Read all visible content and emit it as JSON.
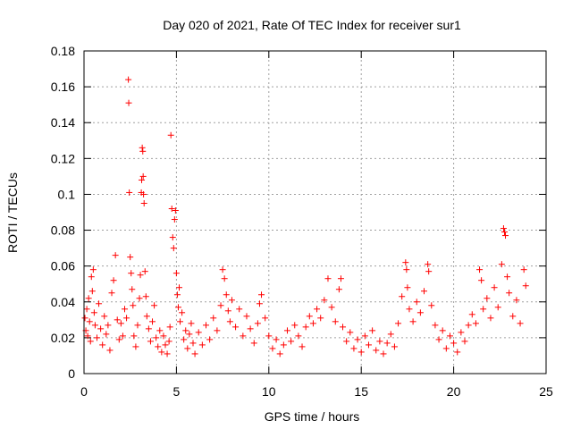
{
  "chart_data": {
    "type": "scatter",
    "title": "Day 020 of 2021, Rate Of TEC Index for receiver sur1",
    "xlabel": "GPS time / hours",
    "ylabel": "ROTI / TECUs",
    "xlim": [
      0,
      25
    ],
    "ylim": [
      0,
      0.18
    ],
    "x_ticks": [
      0,
      5,
      10,
      15,
      20,
      25
    ],
    "x_tick_labels": [
      "0",
      "5",
      "10",
      "15",
      "20",
      "25"
    ],
    "y_ticks": [
      0,
      0.02,
      0.04,
      0.06,
      0.08,
      0.1,
      0.12,
      0.14,
      0.16,
      0.18
    ],
    "y_tick_labels": [
      "0",
      "0.02",
      "0.04",
      "0.06",
      "0.08",
      "0.1",
      "0.12",
      "0.14",
      "0.16",
      "0.18"
    ],
    "grid": true,
    "marker": "+",
    "marker_color": "#ff0000",
    "series": [
      {
        "name": "sur1",
        "points": [
          [
            0.05,
            0.031
          ],
          [
            0.1,
            0.024
          ],
          [
            0.15,
            0.036
          ],
          [
            0.2,
            0.021
          ],
          [
            0.25,
            0.042
          ],
          [
            0.3,
            0.029
          ],
          [
            0.35,
            0.018
          ],
          [
            0.4,
            0.054
          ],
          [
            0.45,
            0.046
          ],
          [
            0.5,
            0.058
          ],
          [
            0.55,
            0.034
          ],
          [
            0.6,
            0.027
          ],
          [
            0.7,
            0.02
          ],
          [
            0.8,
            0.039
          ],
          [
            0.9,
            0.025
          ],
          [
            1.0,
            0.016
          ],
          [
            1.1,
            0.032
          ],
          [
            1.2,
            0.022
          ],
          [
            1.3,
            0.027
          ],
          [
            1.4,
            0.013
          ],
          [
            1.5,
            0.045
          ],
          [
            1.6,
            0.052
          ],
          [
            1.7,
            0.066
          ],
          [
            1.8,
            0.03
          ],
          [
            1.9,
            0.019
          ],
          [
            2.0,
            0.028
          ],
          [
            2.1,
            0.021
          ],
          [
            2.2,
            0.036
          ],
          [
            2.3,
            0.031
          ],
          [
            2.4,
            0.164
          ],
          [
            2.42,
            0.151
          ],
          [
            2.45,
            0.101
          ],
          [
            2.5,
            0.065
          ],
          [
            2.55,
            0.056
          ],
          [
            2.6,
            0.047
          ],
          [
            2.65,
            0.038
          ],
          [
            2.7,
            0.021
          ],
          [
            2.8,
            0.015
          ],
          [
            2.9,
            0.027
          ],
          [
            3.0,
            0.042
          ],
          [
            3.05,
            0.055
          ],
          [
            3.1,
            0.101
          ],
          [
            3.12,
            0.108
          ],
          [
            3.15,
            0.126
          ],
          [
            3.18,
            0.124
          ],
          [
            3.2,
            0.11
          ],
          [
            3.22,
            0.1
          ],
          [
            3.25,
            0.095
          ],
          [
            3.3,
            0.057
          ],
          [
            3.35,
            0.043
          ],
          [
            3.4,
            0.032
          ],
          [
            3.5,
            0.025
          ],
          [
            3.6,
            0.018
          ],
          [
            3.7,
            0.029
          ],
          [
            3.8,
            0.038
          ],
          [
            3.9,
            0.02
          ],
          [
            4.0,
            0.015
          ],
          [
            4.1,
            0.024
          ],
          [
            4.2,
            0.012
          ],
          [
            4.3,
            0.021
          ],
          [
            4.4,
            0.016
          ],
          [
            4.5,
            0.011
          ],
          [
            4.6,
            0.018
          ],
          [
            4.65,
            0.026
          ],
          [
            4.7,
            0.133
          ],
          [
            4.75,
            0.092
          ],
          [
            4.8,
            0.076
          ],
          [
            4.85,
            0.07
          ],
          [
            4.9,
            0.086
          ],
          [
            4.95,
            0.091
          ],
          [
            5.0,
            0.056
          ],
          [
            5.05,
            0.044
          ],
          [
            5.1,
            0.037
          ],
          [
            5.15,
            0.048
          ],
          [
            5.2,
            0.029
          ],
          [
            5.3,
            0.034
          ],
          [
            5.4,
            0.019
          ],
          [
            5.5,
            0.024
          ],
          [
            5.6,
            0.014
          ],
          [
            5.7,
            0.022
          ],
          [
            5.8,
            0.028
          ],
          [
            5.9,
            0.017
          ],
          [
            6.0,
            0.011
          ],
          [
            6.2,
            0.023
          ],
          [
            6.4,
            0.016
          ],
          [
            6.6,
            0.027
          ],
          [
            6.8,
            0.019
          ],
          [
            7.0,
            0.031
          ],
          [
            7.2,
            0.024
          ],
          [
            7.4,
            0.038
          ],
          [
            7.5,
            0.058
          ],
          [
            7.6,
            0.053
          ],
          [
            7.7,
            0.044
          ],
          [
            7.8,
            0.035
          ],
          [
            7.9,
            0.029
          ],
          [
            8.0,
            0.041
          ],
          [
            8.2,
            0.026
          ],
          [
            8.4,
            0.036
          ],
          [
            8.6,
            0.021
          ],
          [
            8.8,
            0.032
          ],
          [
            9.0,
            0.025
          ],
          [
            9.2,
            0.017
          ],
          [
            9.4,
            0.028
          ],
          [
            9.5,
            0.039
          ],
          [
            9.6,
            0.044
          ],
          [
            9.8,
            0.031
          ],
          [
            10.0,
            0.021
          ],
          [
            10.2,
            0.014
          ],
          [
            10.4,
            0.019
          ],
          [
            10.6,
            0.011
          ],
          [
            10.8,
            0.016
          ],
          [
            11.0,
            0.024
          ],
          [
            11.2,
            0.018
          ],
          [
            11.4,
            0.027
          ],
          [
            11.6,
            0.021
          ],
          [
            11.8,
            0.015
          ],
          [
            12.0,
            0.026
          ],
          [
            12.2,
            0.032
          ],
          [
            12.4,
            0.028
          ],
          [
            12.6,
            0.036
          ],
          [
            12.8,
            0.031
          ],
          [
            13.0,
            0.041
          ],
          [
            13.2,
            0.053
          ],
          [
            13.4,
            0.037
          ],
          [
            13.6,
            0.029
          ],
          [
            13.8,
            0.047
          ],
          [
            13.9,
            0.053
          ],
          [
            14.0,
            0.026
          ],
          [
            14.2,
            0.018
          ],
          [
            14.4,
            0.023
          ],
          [
            14.6,
            0.014
          ],
          [
            14.8,
            0.019
          ],
          [
            15.0,
            0.012
          ],
          [
            15.2,
            0.021
          ],
          [
            15.4,
            0.016
          ],
          [
            15.6,
            0.024
          ],
          [
            15.8,
            0.013
          ],
          [
            16.0,
            0.018
          ],
          [
            16.2,
            0.011
          ],
          [
            16.4,
            0.017
          ],
          [
            16.6,
            0.022
          ],
          [
            16.8,
            0.015
          ],
          [
            17.0,
            0.028
          ],
          [
            17.2,
            0.043
          ],
          [
            17.4,
            0.062
          ],
          [
            17.45,
            0.058
          ],
          [
            17.5,
            0.048
          ],
          [
            17.6,
            0.036
          ],
          [
            17.8,
            0.029
          ],
          [
            18.0,
            0.04
          ],
          [
            18.2,
            0.034
          ],
          [
            18.4,
            0.046
          ],
          [
            18.6,
            0.061
          ],
          [
            18.65,
            0.057
          ],
          [
            18.8,
            0.038
          ],
          [
            19.0,
            0.027
          ],
          [
            19.2,
            0.019
          ],
          [
            19.4,
            0.024
          ],
          [
            19.6,
            0.014
          ],
          [
            19.8,
            0.021
          ],
          [
            20.0,
            0.017
          ],
          [
            20.2,
            0.012
          ],
          [
            20.4,
            0.023
          ],
          [
            20.6,
            0.018
          ],
          [
            20.8,
            0.027
          ],
          [
            21.0,
            0.033
          ],
          [
            21.2,
            0.028
          ],
          [
            21.4,
            0.058
          ],
          [
            21.5,
            0.052
          ],
          [
            21.6,
            0.036
          ],
          [
            21.8,
            0.042
          ],
          [
            22.0,
            0.031
          ],
          [
            22.2,
            0.048
          ],
          [
            22.4,
            0.037
          ],
          [
            22.6,
            0.061
          ],
          [
            22.7,
            0.081
          ],
          [
            22.75,
            0.079
          ],
          [
            22.8,
            0.077
          ],
          [
            22.9,
            0.054
          ],
          [
            23.0,
            0.045
          ],
          [
            23.2,
            0.032
          ],
          [
            23.4,
            0.041
          ],
          [
            23.6,
            0.028
          ],
          [
            23.8,
            0.058
          ],
          [
            23.9,
            0.049
          ]
        ]
      }
    ]
  }
}
